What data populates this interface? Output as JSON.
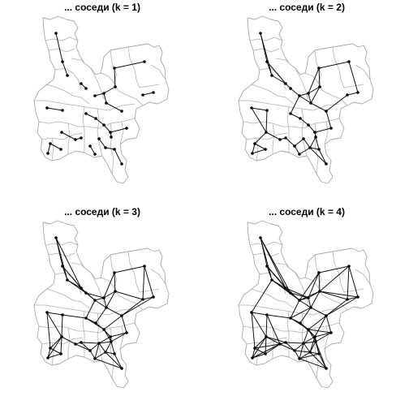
{
  "figure": {
    "panels": [
      {
        "title": "... соседи (k = 1)",
        "k": 1
      },
      {
        "title": "... соседи (k = 2)",
        "k": 2
      },
      {
        "title": "... соседи (k = 3)",
        "k": 3
      },
      {
        "title": "... соседи (k = 4)",
        "k": 4
      }
    ]
  }
}
